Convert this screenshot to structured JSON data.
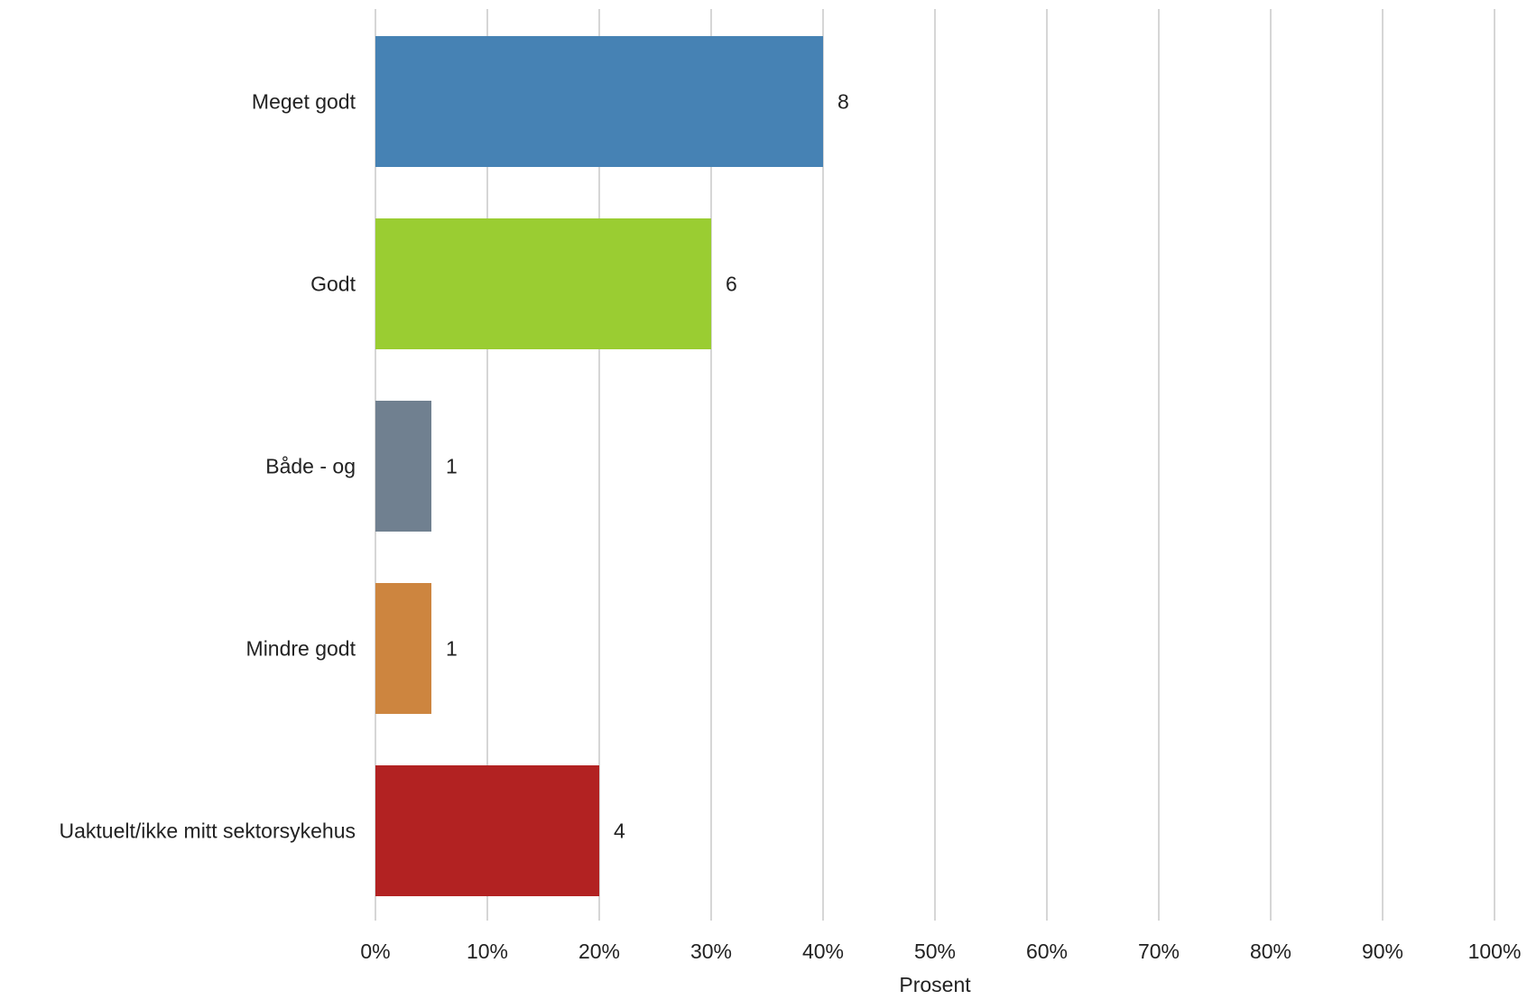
{
  "chart_data": {
    "type": "bar",
    "orientation": "horizontal",
    "categories": [
      "Meget godt",
      "Godt",
      "Både - og",
      "Mindre godt",
      "Uaktuelt/ikke mitt sektorsykehus"
    ],
    "percent_values": [
      40,
      30,
      5,
      5,
      20
    ],
    "count_labels": [
      "8",
      "6",
      "1",
      "1",
      "4"
    ],
    "colors": [
      "#4682B4",
      "#9ACD32",
      "#708090",
      "#CD853F",
      "#B22222"
    ],
    "xlabel": "Prosent",
    "xlim": [
      0,
      100
    ],
    "x_ticks": [
      0,
      10,
      20,
      30,
      40,
      50,
      60,
      70,
      80,
      90,
      100
    ],
    "x_tick_labels": [
      "0%",
      "10%",
      "20%",
      "30%",
      "40%",
      "50%",
      "60%",
      "70%",
      "80%",
      "90%",
      "100%"
    ],
    "grid": "vertical",
    "legend": "none"
  }
}
